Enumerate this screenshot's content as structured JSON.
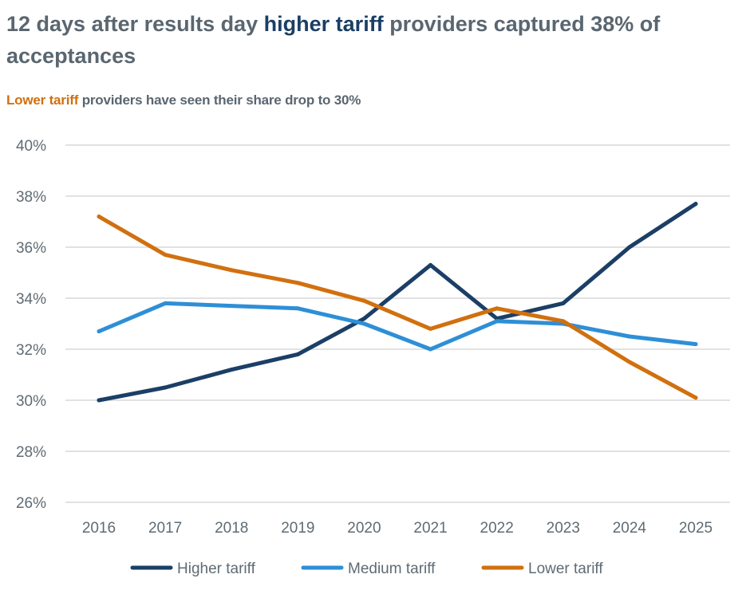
{
  "title": {
    "part1": "12 days after results day ",
    "highlight": "higher tariff",
    "part2": " providers captured 38% of acceptances"
  },
  "subtitle": {
    "highlight": "Lower tariff",
    "rest": " providers have seen their share drop to 30%"
  },
  "colors": {
    "higher": "#1b3f66",
    "medium": "#2e8fd6",
    "lower": "#d1700f",
    "grid": "#d9d9d9",
    "text": "#5f6b73"
  },
  "chart_data": {
    "type": "line",
    "categories": [
      "2016",
      "2017",
      "2018",
      "2019",
      "2020",
      "2021",
      "2022",
      "2023",
      "2024",
      "2025"
    ],
    "ylim": [
      26,
      40
    ],
    "yticks": [
      26,
      28,
      30,
      32,
      34,
      36,
      38,
      40
    ],
    "ytick_labels": [
      "26%",
      "28%",
      "30%",
      "32%",
      "34%",
      "36%",
      "38%",
      "40%"
    ],
    "grid": true,
    "legend_position": "bottom",
    "series": [
      {
        "name": "Higher tariff",
        "key": "higher",
        "values": [
          30.0,
          30.5,
          31.2,
          31.8,
          33.2,
          35.3,
          33.2,
          33.8,
          36.0,
          37.7
        ]
      },
      {
        "name": "Medium tariff",
        "key": "medium",
        "values": [
          32.7,
          33.8,
          33.7,
          33.6,
          33.0,
          32.0,
          33.1,
          33.0,
          32.5,
          32.2
        ]
      },
      {
        "name": "Lower tariff",
        "key": "lower",
        "values": [
          37.2,
          35.7,
          35.1,
          34.6,
          33.9,
          32.8,
          33.6,
          33.1,
          31.5,
          30.1
        ]
      }
    ]
  }
}
